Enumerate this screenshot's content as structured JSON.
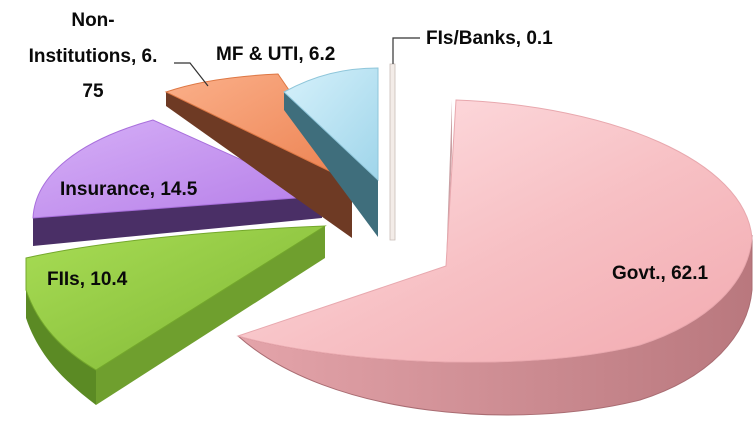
{
  "chart_data": {
    "type": "pie",
    "title": "",
    "slices": [
      {
        "label": "Govt.",
        "value": 62.1,
        "text": "Govt., 62.1",
        "color": "#f5b8bc",
        "side": "#c98388"
      },
      {
        "label": "FIIs",
        "value": 10.4,
        "text": "FIIs, 10.4",
        "color": "#8dc63f",
        "side": "#5b8a24"
      },
      {
        "label": "Insurance",
        "value": 14.5,
        "text": "Insurance, 14.5",
        "color": "#c08cf0",
        "side": "#5b3b7a"
      },
      {
        "label": "Non-Institutions",
        "value": 6.75,
        "text_lines": [
          "Non-",
          "Institutions, 6.",
          "75"
        ],
        "color": "#f4956a",
        "side": "#6e3a24"
      },
      {
        "label": "MF & UTI",
        "value": 6.2,
        "text": "MF & UTI, 6.2",
        "color": "#a6dcef",
        "side": "#3f6e7c"
      },
      {
        "label": "FIs/Banks",
        "value": 0.1,
        "text": "FIs/Banks, 0.1",
        "color": "#eeeeee",
        "side": "#aaaaaa"
      }
    ],
    "legend": "none",
    "exploded": true,
    "style": "3d"
  }
}
